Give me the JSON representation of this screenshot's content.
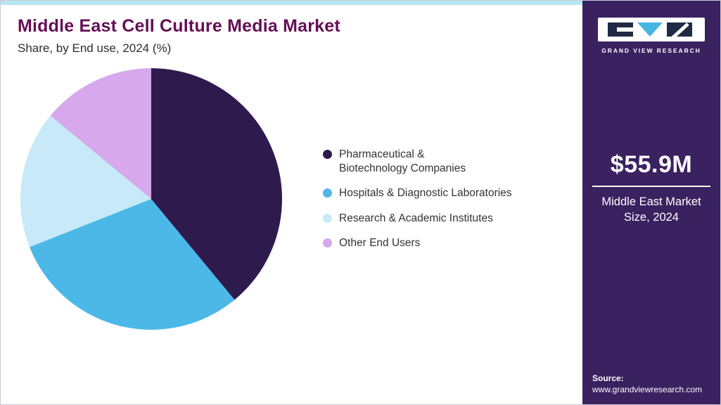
{
  "header": {
    "title": "Middle East Cell Culture Media Market",
    "subtitle": "Share, by End use, 2024 (%)"
  },
  "brand": {
    "name": "GRAND VIEW RESEARCH",
    "logo_dark_color": "#1f2a44",
    "logo_cyan_color": "#45b6e2"
  },
  "sidebar": {
    "background": "#3a2160",
    "market_size_value": "$55.9M",
    "market_size_label": "Middle East Market Size, 2024",
    "source_label": "Source:",
    "source_url": "www.grandviewresearch.com"
  },
  "theme": {
    "title_color": "#640f55",
    "top_strip_color": "#b5e7f2",
    "text_color": "#333333"
  },
  "chart_data": {
    "type": "pie",
    "title": "Middle East Cell Culture Media Market Share, by End use, 2024 (%)",
    "start_angle_deg": 0,
    "direction": "clockwise",
    "legend_position": "right",
    "segments": [
      {
        "label": "Pharmaceutical &\nBiotechnology Companies",
        "value": 39,
        "color": "#2e1a4d"
      },
      {
        "label": "Hospitals & Diagnostic Laboratories",
        "value": 30,
        "color": "#4cb8e8"
      },
      {
        "label": "Research & Academic Institutes",
        "value": 17,
        "color": "#c7e9f8"
      },
      {
        "label": "Other End Users",
        "value": 14,
        "color": "#d7a8ec"
      }
    ]
  }
}
